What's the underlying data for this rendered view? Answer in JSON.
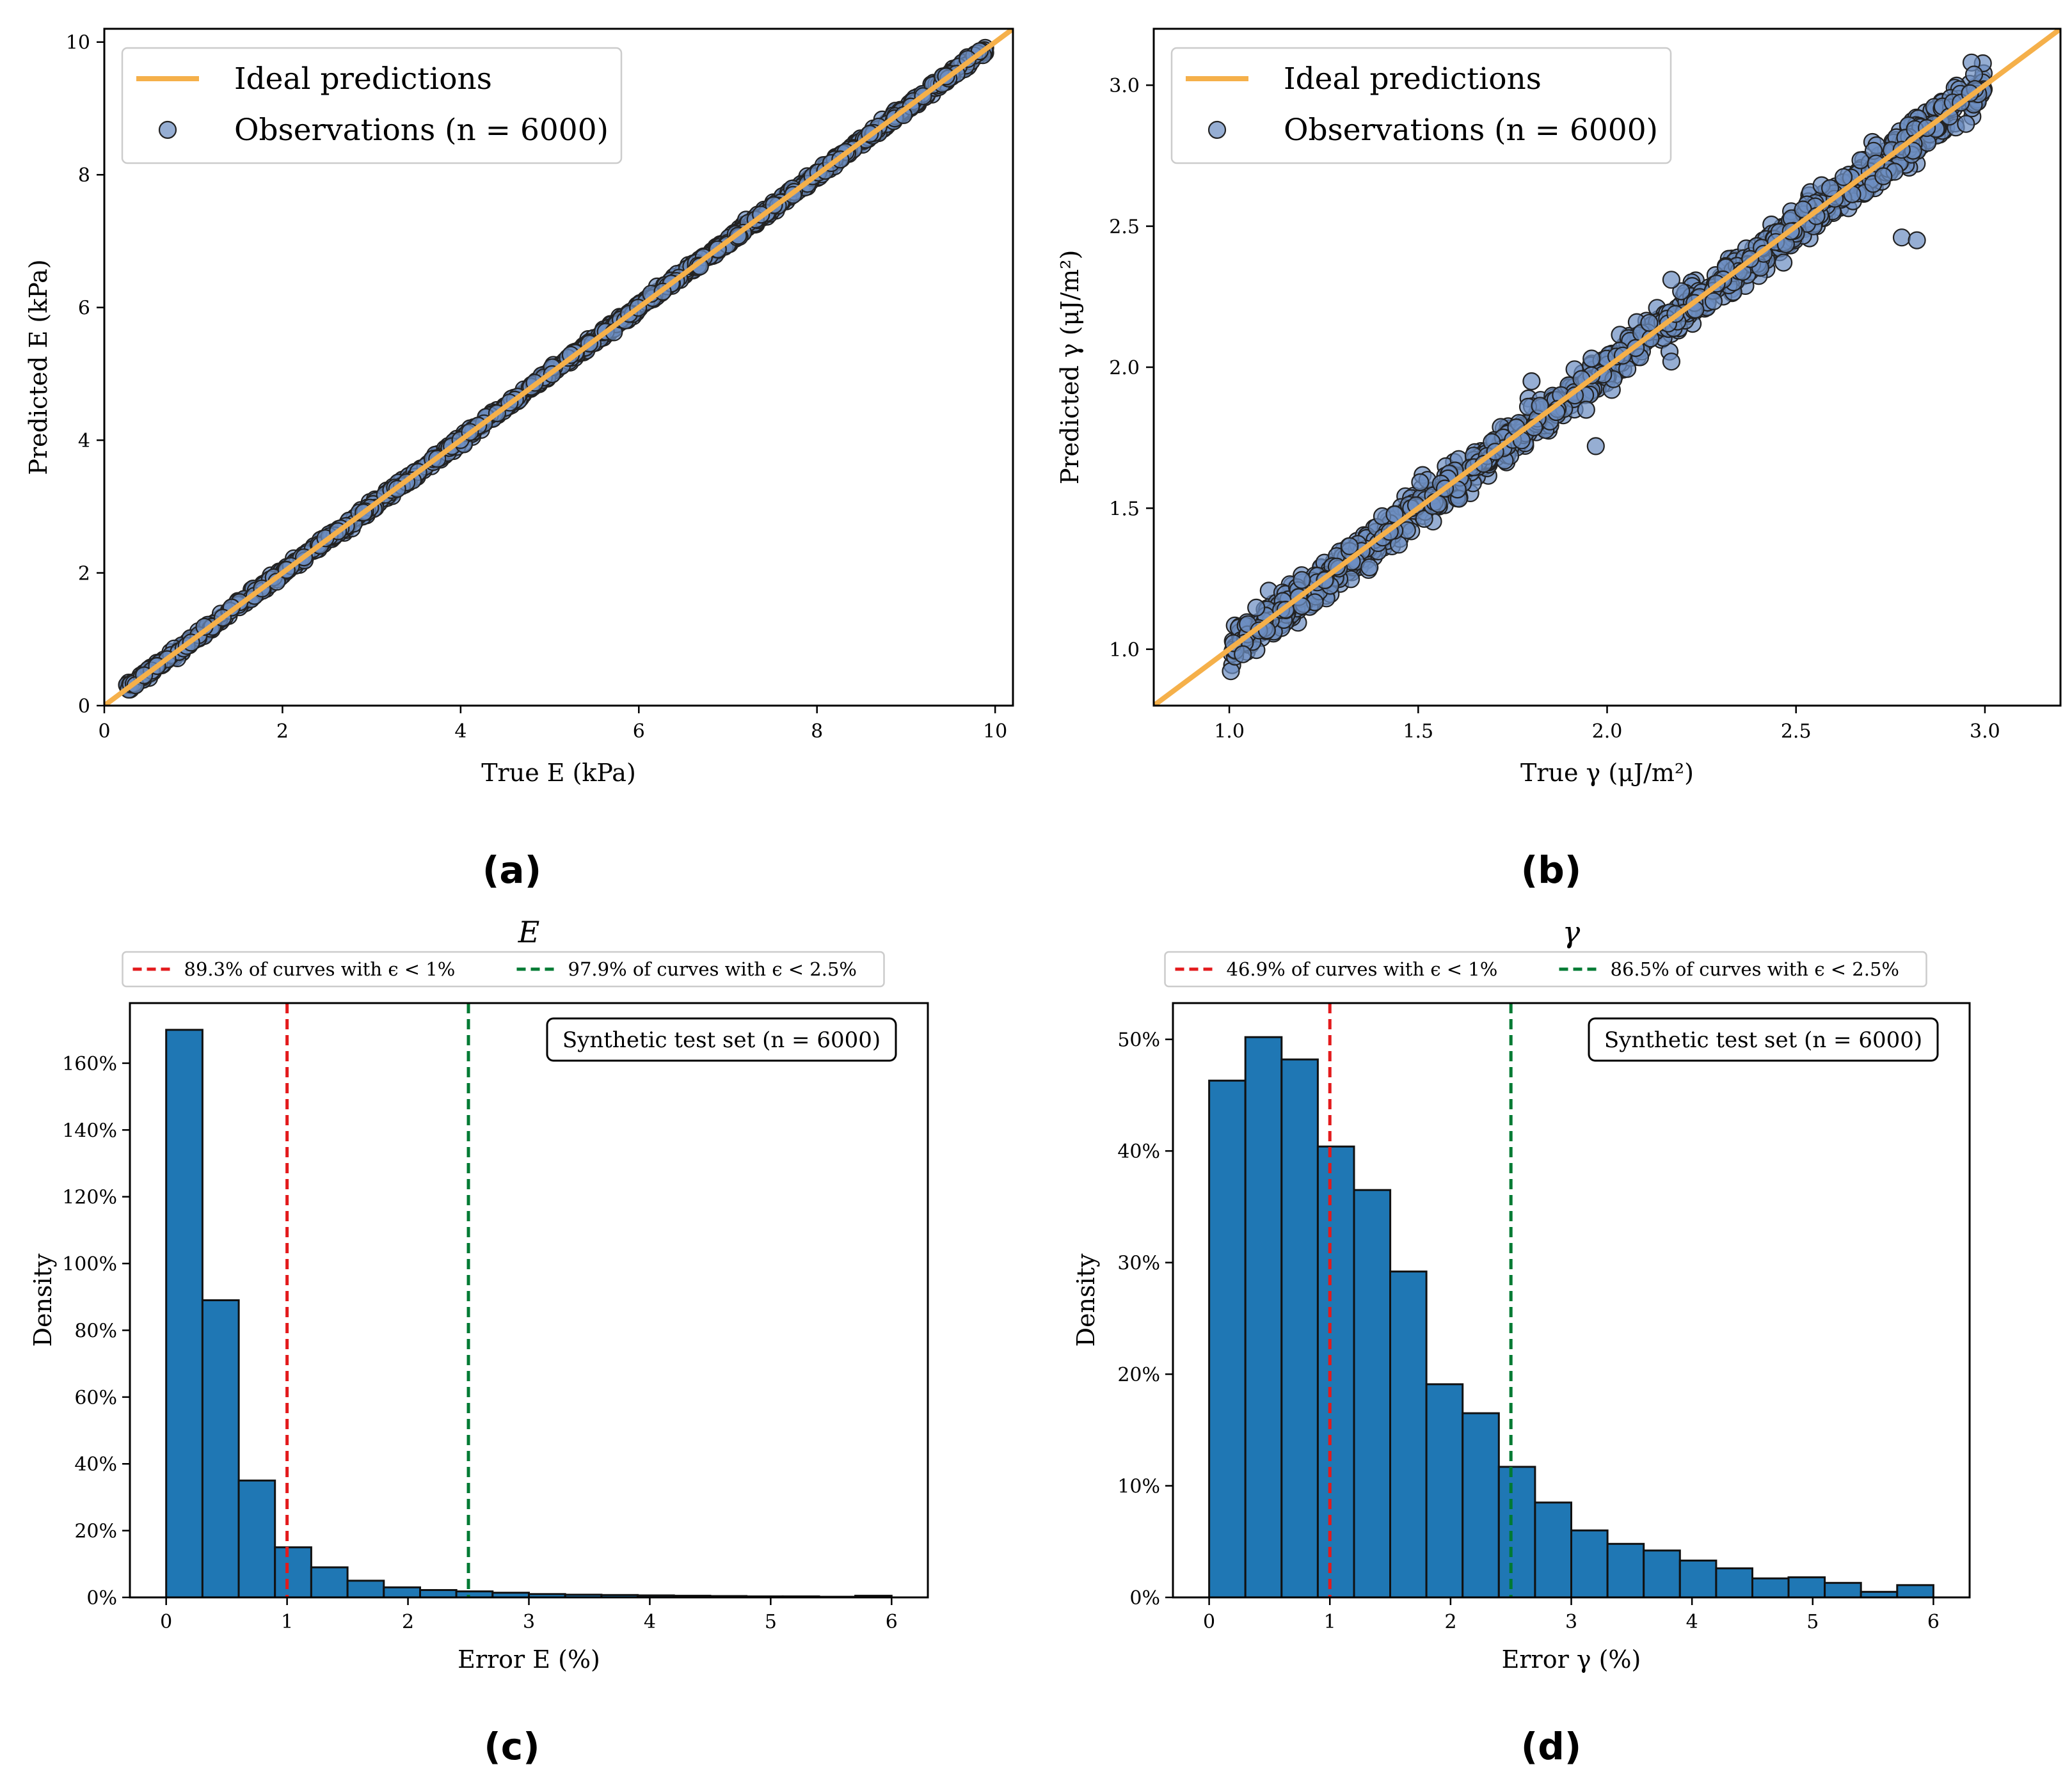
{
  "colors": {
    "ideal": "#f5b04a",
    "marker": "#6d8fc2",
    "marker_edge": "#222222",
    "bar": "#1f77b4",
    "red_line": "#e31a1c",
    "green_line": "#007a33"
  },
  "panel_labels": [
    "(a)",
    "(b)",
    "(c)",
    "(d)"
  ],
  "chart_data": [
    {
      "id": "a",
      "type": "scatter",
      "xlabel": "True E (kPa)",
      "ylabel": "Predicted E (kPa)",
      "xlim": [
        0,
        10.2
      ],
      "ylim": [
        0,
        10.2
      ],
      "xticks": [
        0,
        2,
        4,
        6,
        8,
        10
      ],
      "yticks": [
        0,
        2,
        4,
        6,
        8,
        10
      ],
      "range": [
        0.25,
        9.9
      ],
      "noise": 0.035,
      "legend": {
        "ideal_label": "Ideal predictions",
        "obs_label": "Observations (n = 6000)"
      },
      "n": 6000
    },
    {
      "id": "b",
      "type": "scatter",
      "xlabel": "True γ (μJ/m²)",
      "ylabel": "Predicted γ (μJ/m²)",
      "xlim": [
        0.8,
        3.2
      ],
      "ylim": [
        0.8,
        3.2
      ],
      "xticks": [
        1.0,
        1.5,
        2.0,
        2.5,
        3.0
      ],
      "yticks": [
        1.0,
        1.5,
        2.0,
        2.5,
        3.0
      ],
      "range": [
        1.0,
        3.0
      ],
      "noise": 0.03,
      "outliers": [
        [
          1.97,
          1.72
        ],
        [
          2.17,
          2.02
        ],
        [
          2.78,
          2.46
        ],
        [
          2.82,
          2.45
        ],
        [
          2.17,
          2.31
        ],
        [
          1.8,
          1.95
        ]
      ],
      "legend": {
        "ideal_label": "Ideal predictions",
        "obs_label": "Observations (n = 6000)"
      },
      "n": 6000
    },
    {
      "id": "c",
      "type": "bar",
      "title": "E",
      "xlabel": "Error E (%)",
      "ylabel": "Density",
      "xlim": [
        -0.3,
        6.3
      ],
      "ylim": [
        0,
        1.78
      ],
      "xticks": [
        0,
        1,
        2,
        3,
        4,
        5,
        6
      ],
      "yticks": [
        0,
        0.2,
        0.4,
        0.6,
        0.8,
        1.0,
        1.2,
        1.4,
        1.6
      ],
      "ytick_labels": [
        "0%",
        "20%",
        "40%",
        "60%",
        "80%",
        "100%",
        "120%",
        "140%",
        "160%"
      ],
      "bin_width": 0.3,
      "values": [
        1.7,
        0.89,
        0.35,
        0.15,
        0.09,
        0.05,
        0.03,
        0.022,
        0.018,
        0.014,
        0.01,
        0.008,
        0.007,
        0.006,
        0.005,
        0.004,
        0.003,
        0.003,
        0.002,
        0.005
      ],
      "vlines": [
        {
          "x": 1.0,
          "label": "89.3% of curves with ϵ < 1%",
          "color": "red"
        },
        {
          "x": 2.5,
          "label": "97.9% of curves with ϵ < 2.5%",
          "color": "green"
        }
      ],
      "box": "Synthetic test set (n = 6000)"
    },
    {
      "id": "d",
      "type": "bar",
      "title": "γ",
      "xlabel": "Error γ (%)",
      "ylabel": "Density",
      "xlim": [
        -0.3,
        6.3
      ],
      "ylim": [
        0,
        0.5325
      ],
      "xticks": [
        0,
        1,
        2,
        3,
        4,
        5,
        6
      ],
      "yticks": [
        0,
        0.1,
        0.2,
        0.3,
        0.4,
        0.5
      ],
      "ytick_labels": [
        "0%",
        "10%",
        "20%",
        "30%",
        "40%",
        "50%"
      ],
      "bin_width": 0.3,
      "values": [
        0.463,
        0.502,
        0.482,
        0.404,
        0.365,
        0.292,
        0.191,
        0.165,
        0.117,
        0.085,
        0.06,
        0.048,
        0.042,
        0.033,
        0.026,
        0.017,
        0.018,
        0.013,
        0.005,
        0.011
      ],
      "vlines": [
        {
          "x": 1.0,
          "label": "46.9% of curves with ϵ < 1%",
          "color": "red"
        },
        {
          "x": 2.5,
          "label": "86.5% of curves with ϵ < 2.5%",
          "color": "green"
        }
      ],
      "box": "Synthetic test set (n = 6000)"
    }
  ]
}
